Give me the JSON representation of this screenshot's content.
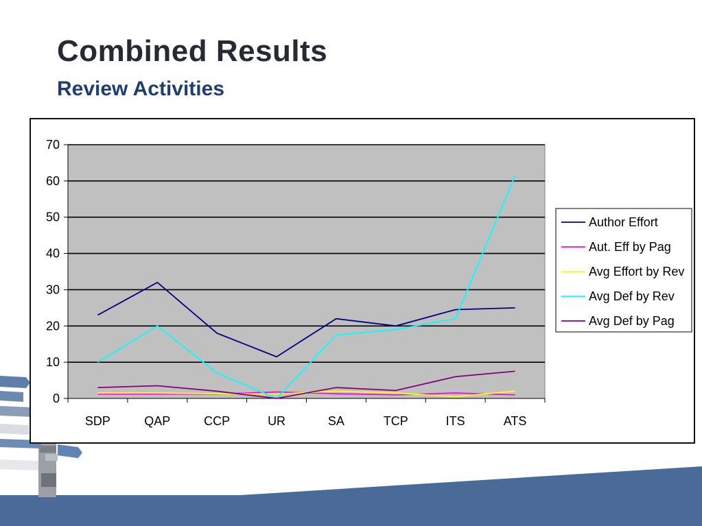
{
  "slide": {
    "title": "Combined Results",
    "subtitle": "Review Activities"
  },
  "colors": {
    "title": "#262b33",
    "subtitle": "#1f3d6e",
    "plot_background": "#c0c0c0",
    "footer_band": "#4a6a98"
  },
  "chart_data": {
    "type": "line",
    "categories": [
      "SDP",
      "QAP",
      "CCP",
      "UR",
      "SA",
      "TCP",
      "ITS",
      "ATS"
    ],
    "ylim": [
      0,
      70
    ],
    "yticks": [
      0,
      10,
      20,
      30,
      40,
      50,
      60,
      70
    ],
    "grid": true,
    "legend_position": "right",
    "series": [
      {
        "name": "Author Effort",
        "color": "#000080",
        "values": [
          23,
          32,
          18,
          11.5,
          22,
          20,
          24.5,
          25
        ]
      },
      {
        "name": "Aut. Eff by Pag",
        "color": "#ff00ff",
        "values": [
          1.2,
          1.2,
          1.2,
          1.8,
          1.3,
          1.0,
          1.5,
          1.0
        ]
      },
      {
        "name": "Avg Effort by Rev",
        "color": "#ffff00",
        "values": [
          1.5,
          1.5,
          1.3,
          1.2,
          2.0,
          1.5,
          0.5,
          2.0
        ]
      },
      {
        "name": "Avg Def by Rev",
        "color": "#00ffff",
        "values": [
          10,
          20,
          7,
          0,
          17.5,
          19,
          22,
          61.5
        ]
      },
      {
        "name": "Avg Def by Pag",
        "color": "#800080",
        "values": [
          3,
          3.5,
          2,
          0,
          3,
          2.2,
          6,
          7.5
        ]
      }
    ]
  }
}
